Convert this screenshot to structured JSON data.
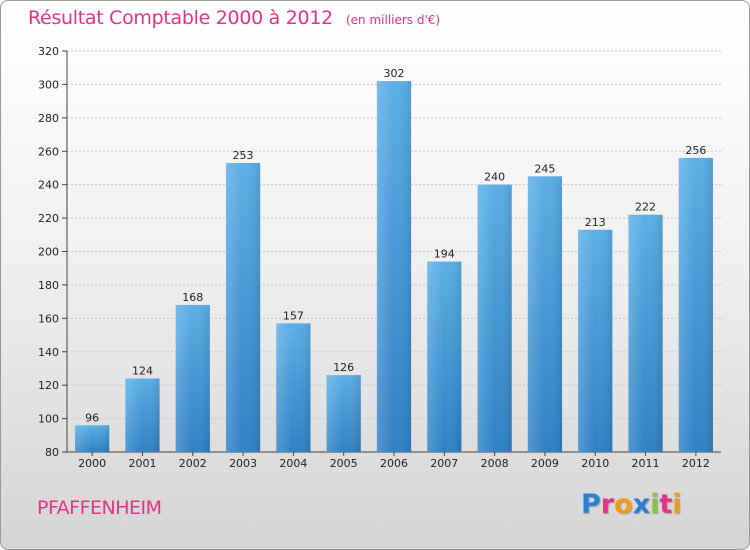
{
  "header": {
    "title": "Résultat Comptable 2000 à 2012",
    "subtitle": "(en milliers d'€)"
  },
  "footer": {
    "commune": "PFAFFENHEIM",
    "logo_text": "Proxiti",
    "logo_colors": [
      "#2a7fd4",
      "#e0338a",
      "#f39c12",
      "#2a7fd4",
      "#8bc34a",
      "#e0338a",
      "#f39c12"
    ]
  },
  "colors": {
    "title": "#e0338a",
    "bar_top": "#5aaee6",
    "bar_bottom": "#2f80c4",
    "grid": "#c8c8c8",
    "axis": "#444444"
  },
  "chart_data": {
    "type": "bar",
    "title": "Résultat Comptable 2000 à 2012",
    "subtitle": "(en milliers d'€)",
    "categories": [
      "2000",
      "2001",
      "2002",
      "2003",
      "2004",
      "2005",
      "2006",
      "2007",
      "2008",
      "2009",
      "2010",
      "2011",
      "2012"
    ],
    "values": [
      96,
      124,
      168,
      253,
      157,
      126,
      302,
      194,
      240,
      245,
      213,
      222,
      256
    ],
    "ylim": [
      80,
      320
    ],
    "yticks": [
      80,
      100,
      120,
      140,
      160,
      180,
      200,
      220,
      240,
      260,
      280,
      300,
      320
    ],
    "grid": true,
    "xlabel": "",
    "ylabel": ""
  }
}
